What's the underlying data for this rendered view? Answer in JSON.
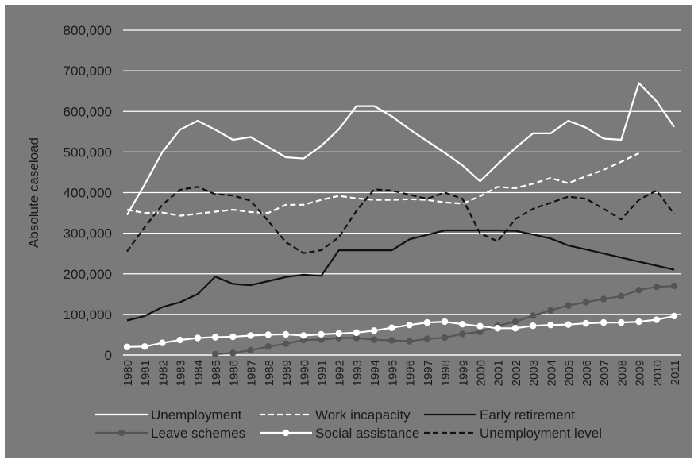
{
  "chart_data": {
    "type": "line",
    "title": "",
    "xlabel": "",
    "ylabel": "Absolute caseload",
    "ylim": [
      0,
      800000
    ],
    "yticks": [
      0,
      100000,
      200000,
      300000,
      400000,
      500000,
      600000,
      700000,
      800000
    ],
    "ytick_labels": [
      "0",
      "100,000",
      "200,000",
      "300,000",
      "400,000",
      "500,000",
      "600,000",
      "700,000",
      "800,000"
    ],
    "categories": [
      "1980",
      "1981",
      "1982",
      "1983",
      "1984",
      "1985",
      "1986",
      "1987",
      "1988",
      "1989",
      "1990",
      "1991",
      "1992",
      "1993",
      "1994",
      "1995",
      "1996",
      "1997",
      "1998",
      "1999",
      "2000",
      "2001",
      "2002",
      "2003",
      "2004",
      "2005",
      "2006",
      "2007",
      "2008",
      "2009",
      "2010",
      "2011"
    ],
    "grid": true,
    "legend_position": "bottom",
    "colors": {
      "plot_background": "#7a7a7a",
      "page_background": "#ffffff",
      "gridline": "#ffffff",
      "unemployment": "#ffffff",
      "work_incapacity": "#ffffff",
      "early_retirement": "#111111",
      "leave_schemes": "#555555",
      "social_assistance": "#ffffff",
      "unemployment_level": "#111111"
    },
    "series": [
      {
        "name": "Unemployment",
        "style": "solid",
        "color": "#ffffff",
        "values": [
          345000,
          420000,
          500000,
          555000,
          577000,
          555000,
          530000,
          537000,
          512000,
          487000,
          484000,
          515000,
          556000,
          613000,
          613000,
          588000,
          556000,
          527000,
          498000,
          467000,
          428000,
          470000,
          510000,
          546000,
          546000,
          577000,
          560000,
          533000,
          530000,
          670000,
          625000,
          562000
        ]
      },
      {
        "name": "Work incapacity",
        "style": "dashed",
        "color": "#ffffff",
        "values": [
          358000,
          350000,
          351000,
          343000,
          348000,
          353000,
          358000,
          352000,
          350000,
          370000,
          370000,
          382000,
          392000,
          386000,
          382000,
          382000,
          384000,
          382000,
          376000,
          373000,
          391000,
          414000,
          411000,
          422000,
          436000,
          423000,
          440000,
          456000,
          476000,
          497000,
          null,
          null
        ]
      },
      {
        "name": "Early retirement",
        "style": "solid",
        "color": "#111111",
        "values": [
          85000,
          96000,
          118000,
          130000,
          150000,
          193000,
          175000,
          172000,
          182000,
          192000,
          198000,
          195000,
          258000,
          258000,
          258000,
          258000,
          285000,
          296000,
          307000,
          307000,
          307000,
          307000,
          306000,
          297000,
          287000,
          270000,
          260000,
          250000,
          240000,
          230000,
          220000,
          210000
        ]
      },
      {
        "name": "Leave schemes",
        "style": "solid-marker",
        "color": "#555555",
        "values": [
          null,
          null,
          null,
          null,
          null,
          2000,
          5000,
          12000,
          21000,
          28000,
          37000,
          38000,
          42000,
          42000,
          38000,
          36000,
          34000,
          40000,
          43000,
          52000,
          57000,
          72000,
          82000,
          97000,
          110000,
          122000,
          130000,
          138000,
          145000,
          160000,
          168000,
          170000
        ]
      },
      {
        "name": "Social assistance",
        "style": "solid-marker",
        "color": "#ffffff",
        "values": [
          20000,
          21000,
          30000,
          37000,
          42000,
          44000,
          45000,
          48000,
          50000,
          51000,
          48000,
          51000,
          53000,
          55000,
          60000,
          67000,
          74000,
          80000,
          82000,
          76000,
          71000,
          66000,
          66000,
          72000,
          74000,
          75000,
          78000,
          80000,
          80000,
          82000,
          87000,
          96000
        ]
      },
      {
        "name": "Unemployment level",
        "style": "dashed",
        "color": "#111111",
        "values": [
          255000,
          315000,
          370000,
          407000,
          414000,
          396000,
          393000,
          380000,
          330000,
          278000,
          251000,
          258000,
          290000,
          355000,
          408000,
          405000,
          395000,
          385000,
          400000,
          385000,
          300000,
          280000,
          335000,
          360000,
          375000,
          390000,
          385000,
          360000,
          334000,
          382000,
          405000,
          347000
        ]
      }
    ]
  }
}
